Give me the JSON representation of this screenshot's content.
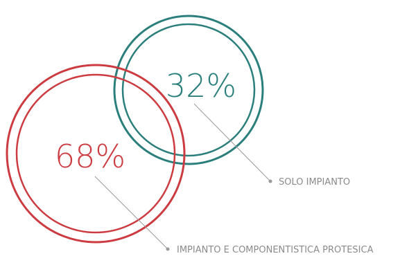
{
  "chart_data": {
    "type": "bubble",
    "series": [
      {
        "name": "SOLO IMPIANTO",
        "value": 32,
        "display": "32%",
        "color": "#2a7f7c"
      },
      {
        "name": "IMPIANTO E COMPONENTISTICA PROTESICA",
        "value": 68,
        "display": "68%",
        "color": "#cc3b40"
      }
    ],
    "leader_color": "#9a9a9a"
  }
}
